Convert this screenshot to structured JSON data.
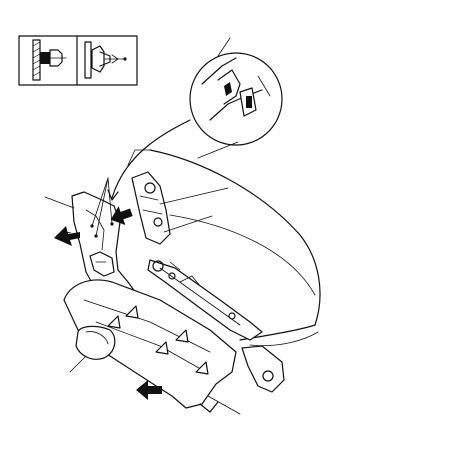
{
  "diagram": {
    "type": "assembly-exploded-view",
    "line_color": "#111111",
    "background": "#ffffff",
    "icons": {
      "inset_clip_detail": "clip-detail-icon",
      "callout_magnifier": "magnifier-callout-icon",
      "arrow": "removal-direction-arrow-icon",
      "triangle": "clip-location-triangle-icon"
    },
    "callouts": [
      {
        "id": "trim-cover-front"
      },
      {
        "id": "clips-trio"
      },
      {
        "id": "detail-hook"
      },
      {
        "id": "seat-hinge"
      },
      {
        "id": "seat-bolt"
      },
      {
        "id": "knob"
      },
      {
        "id": "trim-cover-lower"
      }
    ]
  }
}
